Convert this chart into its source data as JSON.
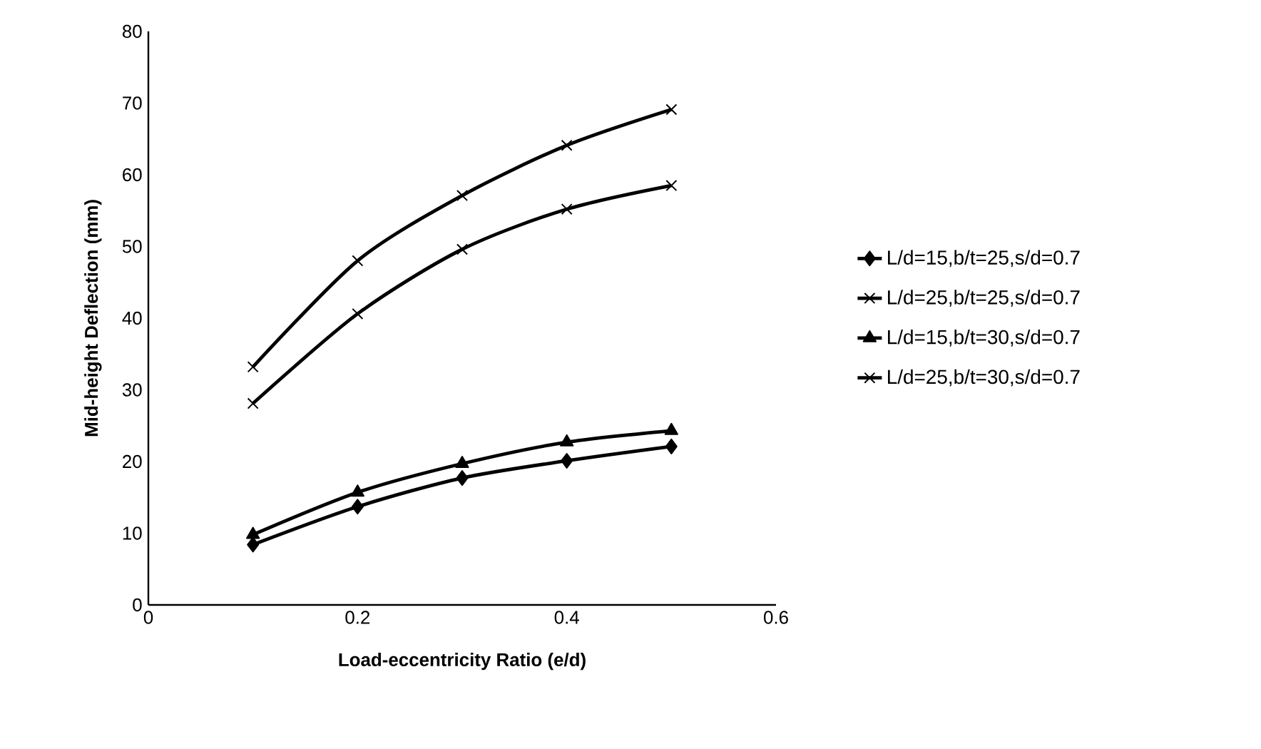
{
  "chart_data": {
    "type": "line",
    "xlabel": "Load-eccentricity Ratio (e/d)",
    "ylabel": "Mid-height Deflection (mm)",
    "x": [
      0.1,
      0.2,
      0.3,
      0.4,
      0.5
    ],
    "series": [
      {
        "name": "L/d=15,b/t=25,s/d=0.7",
        "color": "#000000",
        "marker": "diamond",
        "values": [
          8.4,
          13.7,
          17.7,
          20.1,
          22.1
        ]
      },
      {
        "name": "L/d=25,b/t=25,s/d=0.7",
        "color": "#000000",
        "marker": "cross",
        "values": [
          28.1,
          40.6,
          49.6,
          55.2,
          58.5
        ]
      },
      {
        "name": "L/d=15,b/t=30,s/d=0.7",
        "color": "#000000",
        "marker": "triangle",
        "values": [
          9.8,
          15.7,
          19.7,
          22.7,
          24.3
        ]
      },
      {
        "name": "L/d=25,b/t=30,s/d=0.7",
        "color": "#000000",
        "marker": "cross",
        "values": [
          33.2,
          48.0,
          57.1,
          64.1,
          69.1
        ]
      }
    ],
    "xlim": [
      0,
      0.6
    ],
    "xticks": [
      0,
      0.2,
      0.4,
      0.6
    ],
    "ylim": [
      0,
      80
    ],
    "yticks": [
      0,
      10,
      20,
      30,
      40,
      50,
      60,
      70,
      80
    ],
    "grid": false,
    "legend": "right",
    "line_style": "solid"
  }
}
